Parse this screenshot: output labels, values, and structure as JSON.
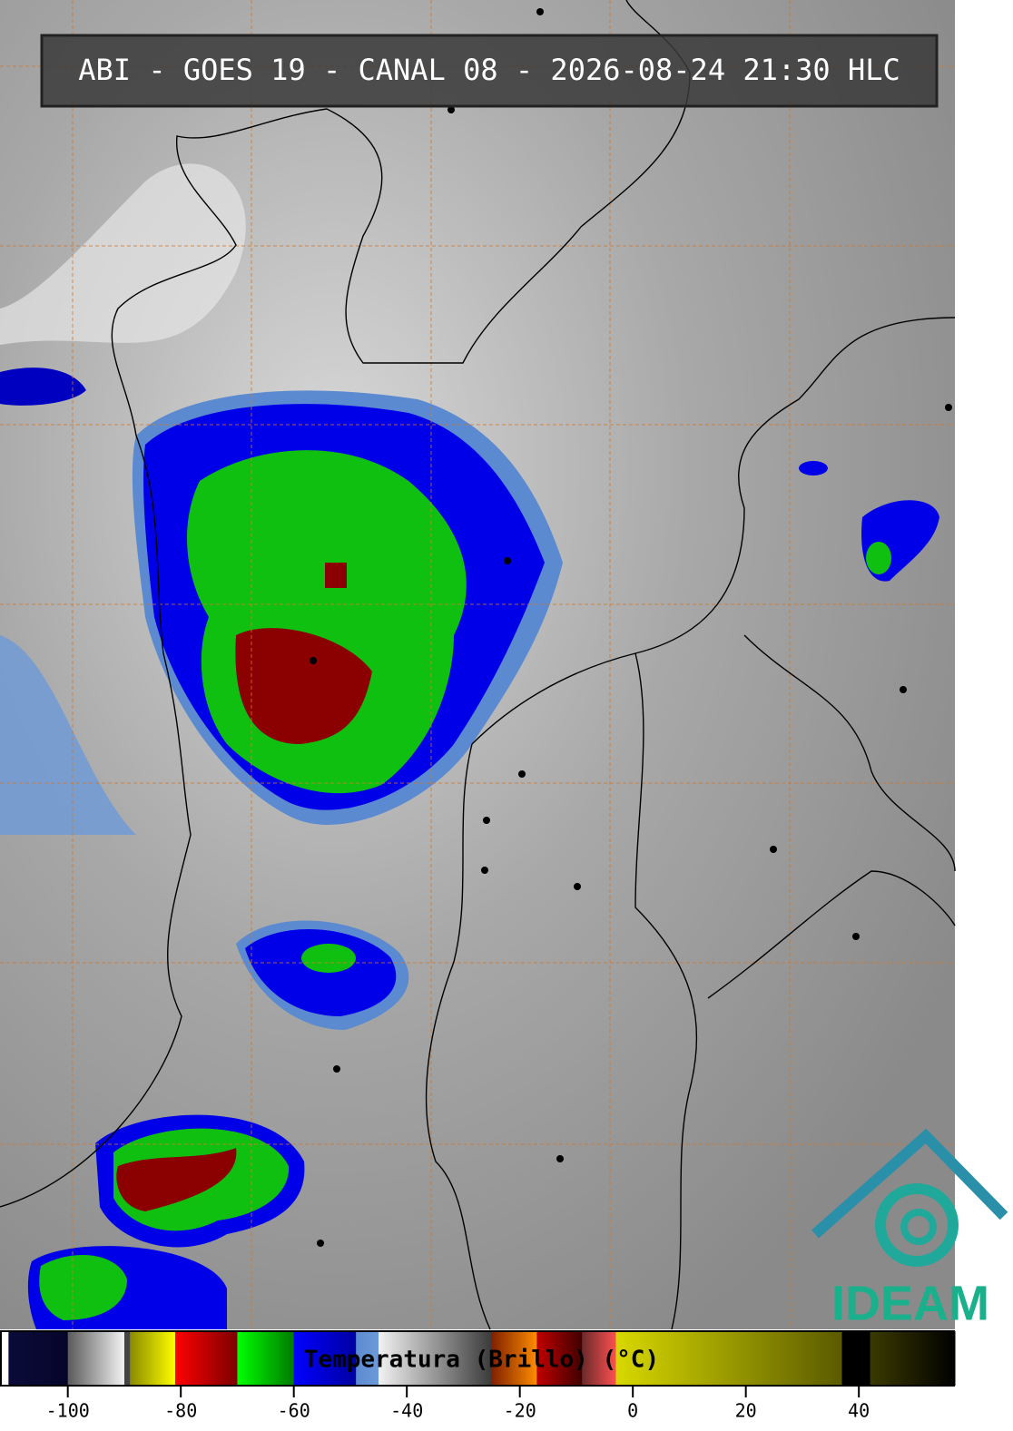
{
  "header": {
    "title": "ABI - GOES 19 - CANAL 08 - 2026-08-24 21:30 HLC"
  },
  "logo": {
    "text": "IDEAM"
  },
  "colorbar": {
    "label": "Temperatura (Brillo) (°C)",
    "lim": [
      -112,
      57
    ],
    "ticks": [
      -100,
      -80,
      -60,
      -40,
      -20,
      0,
      20,
      40
    ],
    "segments": [
      {
        "from": -112,
        "to": -110.5,
        "color": "#ffffff",
        "color2": "#ffffff"
      },
      {
        "from": -110.5,
        "to": -100,
        "color": "#0b0b3a",
        "color2": "#05052a"
      },
      {
        "from": -100,
        "to": -90,
        "color": "#5a5a5a",
        "color2": "#f4f4f4"
      },
      {
        "from": -90,
        "to": -89,
        "color": "#444444",
        "color2": "#444444"
      },
      {
        "from": -89,
        "to": -81,
        "color": "#8a8a00",
        "color2": "#ffff00"
      },
      {
        "from": -81,
        "to": -70,
        "color": "#ff0000",
        "color2": "#7a0000"
      },
      {
        "from": -70,
        "to": -60,
        "color": "#00ff00",
        "color2": "#007a00"
      },
      {
        "from": -60,
        "to": -49,
        "color": "#0000ff",
        "color2": "#0000a0"
      },
      {
        "from": -49,
        "to": -45,
        "color": "#5b8ad0",
        "color2": "#6d9ad8"
      },
      {
        "from": -45,
        "to": -25,
        "color": "#f2f2f2",
        "color2": "#3a3a3a"
      },
      {
        "from": -25,
        "to": -17,
        "color": "#802000",
        "color2": "#ff8c00"
      },
      {
        "from": -17,
        "to": -9,
        "color": "#c00000",
        "color2": "#400000"
      },
      {
        "from": -9,
        "to": -3,
        "color": "#6a2a2a",
        "color2": "#ff5050"
      },
      {
        "from": -3,
        "to": 37,
        "color": "#d8d800",
        "color2": "#5a5a00"
      },
      {
        "from": 37,
        "to": 42,
        "color": "#000000",
        "color2": "#000000"
      },
      {
        "from": 42,
        "to": 57,
        "color": "#3a3a00",
        "color2": "#000000"
      }
    ]
  }
}
